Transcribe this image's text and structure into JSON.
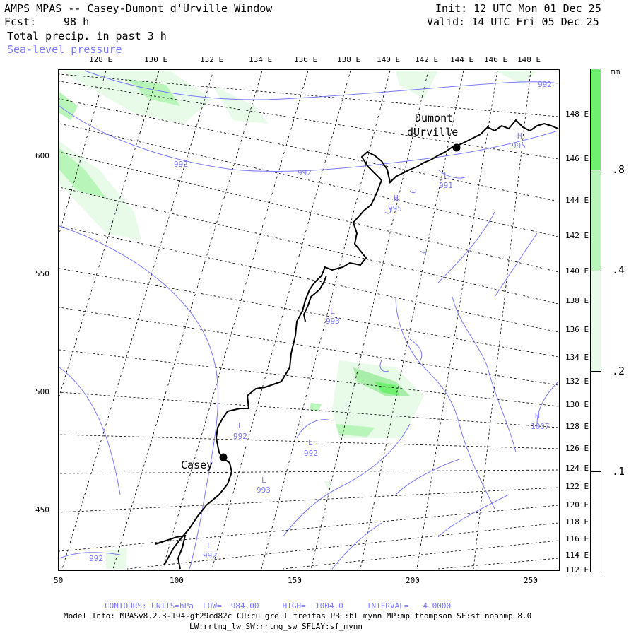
{
  "header": {
    "title": "AMPS MPAS -- Casey-Dumont d'Urville Window",
    "fcst_label": "Fcst:",
    "fcst_value": "98 h",
    "field": "Total precip. in past 3 h",
    "overlay": "Sea-level pressure",
    "init": "Init: 12 UTC Mon 01 Dec 25",
    "valid": "Valid: 14 UTC Fri 05 Dec 25"
  },
  "top_lon_labels": [
    "128 E",
    "130 E",
    "132 E",
    "134 E",
    "136 E",
    "138 E",
    "140 E",
    "142 E",
    "144 E",
    "146 E",
    "148 E"
  ],
  "right_lon_labels": [
    "148 E",
    "146 E",
    "144 E",
    "142 E",
    "140 E",
    "138 E",
    "136 E",
    "134 E",
    "132 E",
    "130 E",
    "128 E",
    "126 E",
    "124 E",
    "122 E",
    "120 E",
    "118 E",
    "116 E",
    "114 E",
    "112 E"
  ],
  "y_axis_labels": [
    "600",
    "550",
    "500",
    "450"
  ],
  "x_axis_labels": [
    "50",
    "100",
    "150",
    "200",
    "250"
  ],
  "stations": {
    "casey": "Casey",
    "dumont_line1": "Dumont",
    "dumont_line2": "dUrville"
  },
  "pressure_labels": {
    "h1": "H",
    "h1_val": "995",
    "c1": "L",
    "c1_val": "991",
    "h2": "H",
    "h2_val": "995",
    "l1": "L",
    "l1_val": "993",
    "l2": "L",
    "l2_val": "992",
    "l3": "L",
    "l3_val": "992",
    "l4": "L",
    "l4_val": "993",
    "l5": "L",
    "l5_val": "992",
    "h3": "H",
    "h3_val": "1007",
    "v992a": "992",
    "v992b": "992",
    "v992c": "992",
    "v992d": "992"
  },
  "legend": {
    "unit": "mm",
    "labels": [
      ".8",
      ".4",
      ".2",
      ".1"
    ],
    "colors": [
      "#6ff06f",
      "#b8f5b8",
      "#e8fbe8",
      "#ffffff"
    ]
  },
  "footer": {
    "contours": "CONTOURS: UNITS=hPa  LOW=  984.00     HIGH=  1004.0     INTERVAL=   4.0000",
    "model_info": "Model Info: MPASv8.2.3-194-gf29cd82c CU:cu_grell_freitas PBL:bl_mynn MP:mp_thompson SF:sf_noahmp 8.0",
    "model_info2": "LW:rrtmg_lw SW:rrtmg_sw SFLAY:sf_mynn"
  },
  "colors": {
    "contour": "#7b7bff",
    "coast": "#000000",
    "precip_light": "#e0f8e0",
    "precip_mid": "#a8eea8",
    "precip_strong": "#6ff06f"
  }
}
